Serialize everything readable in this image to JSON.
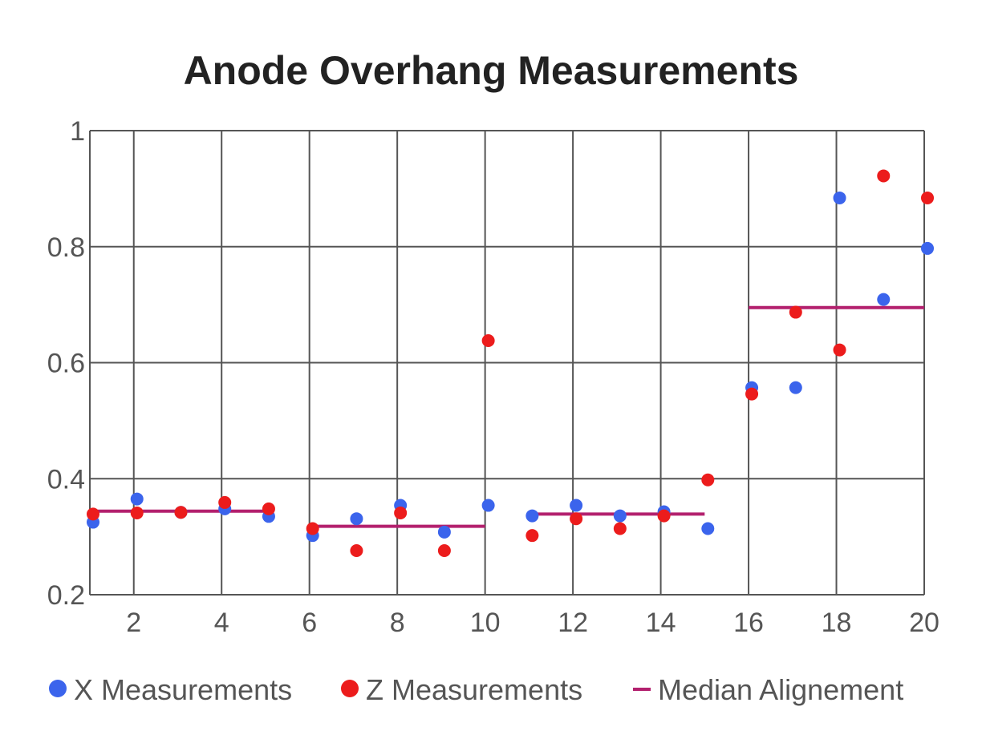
{
  "chart_data": {
    "type": "scatter",
    "title": "Anode Overhang Measurements",
    "xlabel": "",
    "ylabel": "",
    "xlim": [
      1,
      20
    ],
    "ylim": [
      0.2,
      1.0
    ],
    "x_ticks": [
      2,
      4,
      6,
      8,
      10,
      12,
      14,
      16,
      18,
      20
    ],
    "y_ticks": [
      0.2,
      0.4,
      0.6,
      0.8,
      1
    ],
    "y_tick_labels": [
      "0.2",
      "0.4",
      "0.6",
      "0.8",
      "1"
    ],
    "grid": true,
    "legend_position": "bottom",
    "series": [
      {
        "name": "X Measurements",
        "type": "scatter",
        "color": "#3b64ec",
        "points": [
          [
            1,
            0.325
          ],
          [
            2,
            0.365
          ],
          [
            3,
            0.342
          ],
          [
            4,
            0.348
          ],
          [
            5,
            0.335
          ],
          [
            6,
            0.302
          ],
          [
            7,
            0.331
          ],
          [
            8,
            0.354
          ],
          [
            9,
            0.308
          ],
          [
            10,
            0.354
          ],
          [
            11,
            0.336
          ],
          [
            12,
            0.354
          ],
          [
            13,
            0.336
          ],
          [
            14,
            0.343
          ],
          [
            15,
            0.314
          ],
          [
            16,
            0.557
          ],
          [
            17,
            0.557
          ],
          [
            18,
            0.884
          ],
          [
            19,
            0.709
          ],
          [
            20,
            0.797
          ]
        ]
      },
      {
        "name": "Z Measurements",
        "type": "scatter",
        "color": "#ec1c1c",
        "points": [
          [
            1,
            0.339
          ],
          [
            2,
            0.341
          ],
          [
            3,
            0.342
          ],
          [
            4,
            0.359
          ],
          [
            5,
            0.348
          ],
          [
            6,
            0.314
          ],
          [
            7,
            0.276
          ],
          [
            8,
            0.341
          ],
          [
            9,
            0.276
          ],
          [
            10,
            0.638
          ],
          [
            11,
            0.302
          ],
          [
            12,
            0.331
          ],
          [
            13,
            0.314
          ],
          [
            14,
            0.336
          ],
          [
            15,
            0.398
          ],
          [
            16,
            0.546
          ],
          [
            17,
            0.687
          ],
          [
            18,
            0.622
          ],
          [
            19,
            0.922
          ],
          [
            20,
            0.884
          ]
        ]
      },
      {
        "name": "Median Alignement",
        "type": "line",
        "color": "#b3206e",
        "segments": [
          {
            "x": [
              1,
              5
            ],
            "y": 0.344
          },
          {
            "x": [
              6,
              10
            ],
            "y": 0.318
          },
          {
            "x": [
              11,
              15
            ],
            "y": 0.339
          },
          {
            "x": [
              16,
              20
            ],
            "y": 0.695
          }
        ]
      }
    ]
  }
}
